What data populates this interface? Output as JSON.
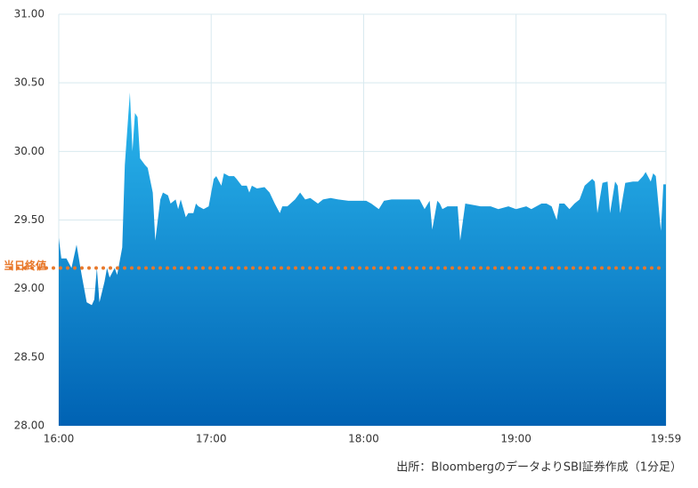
{
  "chart_data": {
    "type": "area",
    "x": [
      "16:00",
      "16:01",
      "16:03",
      "16:05",
      "16:07",
      "16:09",
      "16:11",
      "16:13",
      "16:14",
      "16:15",
      "16:16",
      "16:18",
      "16:19",
      "16:20",
      "16:22",
      "16:23",
      "16:25",
      "16:26",
      "16:28",
      "16:29",
      "16:30",
      "16:31",
      "16:32",
      "16:34",
      "16:35",
      "16:37",
      "16:38",
      "16:40",
      "16:41",
      "16:43",
      "16:44",
      "16:46",
      "16:47",
      "16:48",
      "16:50",
      "16:51",
      "16:53",
      "16:54",
      "16:55",
      "16:57",
      "16:59",
      "17:01",
      "17:02",
      "17:04",
      "17:05",
      "17:07",
      "17:09",
      "17:10",
      "17:12",
      "17:14",
      "17:15",
      "17:16",
      "17:18",
      "17:21",
      "17:23",
      "17:25",
      "17:27",
      "17:28",
      "17:30",
      "17:33",
      "17:35",
      "17:37",
      "17:39",
      "17:42",
      "17:44",
      "17:47",
      "17:50",
      "17:54",
      "17:57",
      "18:01",
      "18:03",
      "18:06",
      "18:08",
      "18:11",
      "18:15",
      "18:18",
      "18:22",
      "18:24",
      "18:26",
      "18:27",
      "18:29",
      "18:30",
      "18:31",
      "18:33",
      "18:36",
      "18:37",
      "18:38",
      "18:40",
      "18:43",
      "18:46",
      "18:50",
      "18:53",
      "18:57",
      "19:00",
      "19:04",
      "19:06",
      "19:08",
      "19:10",
      "19:12",
      "19:14",
      "19:16",
      "19:17",
      "19:19",
      "19:21",
      "19:23",
      "19:25",
      "19:27",
      "19:30",
      "19:31",
      "19:32",
      "19:34",
      "19:36",
      "19:37",
      "19:39",
      "19:40",
      "19:41",
      "19:43",
      "19:46",
      "19:48",
      "19:50",
      "19:51",
      "19:53",
      "19:54",
      "19:55",
      "19:57",
      "19:58",
      "19:59"
    ],
    "series": [
      {
        "gradient": [
          "#2bb8ef",
          "#0062b3"
        ],
        "values": [
          29.37,
          29.22,
          29.22,
          29.15,
          29.32,
          29.1,
          28.9,
          28.88,
          28.92,
          29.15,
          28.9,
          29.05,
          29.15,
          29.08,
          29.15,
          29.1,
          29.3,
          29.9,
          30.43,
          30.0,
          30.28,
          30.25,
          29.95,
          29.9,
          29.88,
          29.7,
          29.35,
          29.65,
          29.7,
          29.68,
          29.62,
          29.65,
          29.58,
          29.65,
          29.52,
          29.55,
          29.55,
          29.62,
          29.6,
          29.58,
          29.6,
          29.8,
          29.82,
          29.75,
          29.84,
          29.82,
          29.82,
          29.8,
          29.75,
          29.75,
          29.7,
          29.75,
          29.73,
          29.74,
          29.7,
          29.62,
          29.55,
          29.6,
          29.6,
          29.65,
          29.7,
          29.65,
          29.66,
          29.62,
          29.65,
          29.66,
          29.65,
          29.64,
          29.64,
          29.64,
          29.62,
          29.58,
          29.64,
          29.65,
          29.65,
          29.65,
          29.65,
          29.58,
          29.64,
          29.43,
          29.64,
          29.62,
          29.58,
          29.6,
          29.6,
          29.6,
          29.35,
          29.62,
          29.61,
          29.6,
          29.6,
          29.58,
          29.6,
          29.58,
          29.6,
          29.58,
          29.6,
          29.62,
          29.62,
          29.6,
          29.5,
          29.62,
          29.62,
          29.58,
          29.62,
          29.65,
          29.75,
          29.8,
          29.78,
          29.55,
          29.77,
          29.78,
          29.55,
          29.78,
          29.75,
          29.55,
          29.77,
          29.78,
          29.78,
          29.82,
          29.85,
          29.78,
          29.84,
          29.82,
          29.42,
          29.76,
          29.76
        ]
      }
    ],
    "xlim": [
      "16:00",
      "19:59"
    ],
    "xticks": [
      "16:00",
      "17:00",
      "18:00",
      "19:00",
      "19:59"
    ],
    "ylim": [
      28,
      31
    ],
    "yticks": [
      {
        "value": 28,
        "label": "28.00"
      },
      {
        "value": 28.5,
        "label": "28.50"
      },
      {
        "value": 29,
        "label": "29.00"
      },
      {
        "value": 29.5,
        "label": "29.50"
      },
      {
        "value": 30,
        "label": "30.00"
      },
      {
        "value": 30.5,
        "label": "30.50"
      },
      {
        "value": 31,
        "label": "31.00"
      }
    ],
    "grid": true,
    "reference_line": {
      "label": "当日終値",
      "value": 29.15,
      "color": "#e8782a"
    },
    "source": "出所：BloombergのデータよりSBI証券作成（1分足）"
  }
}
